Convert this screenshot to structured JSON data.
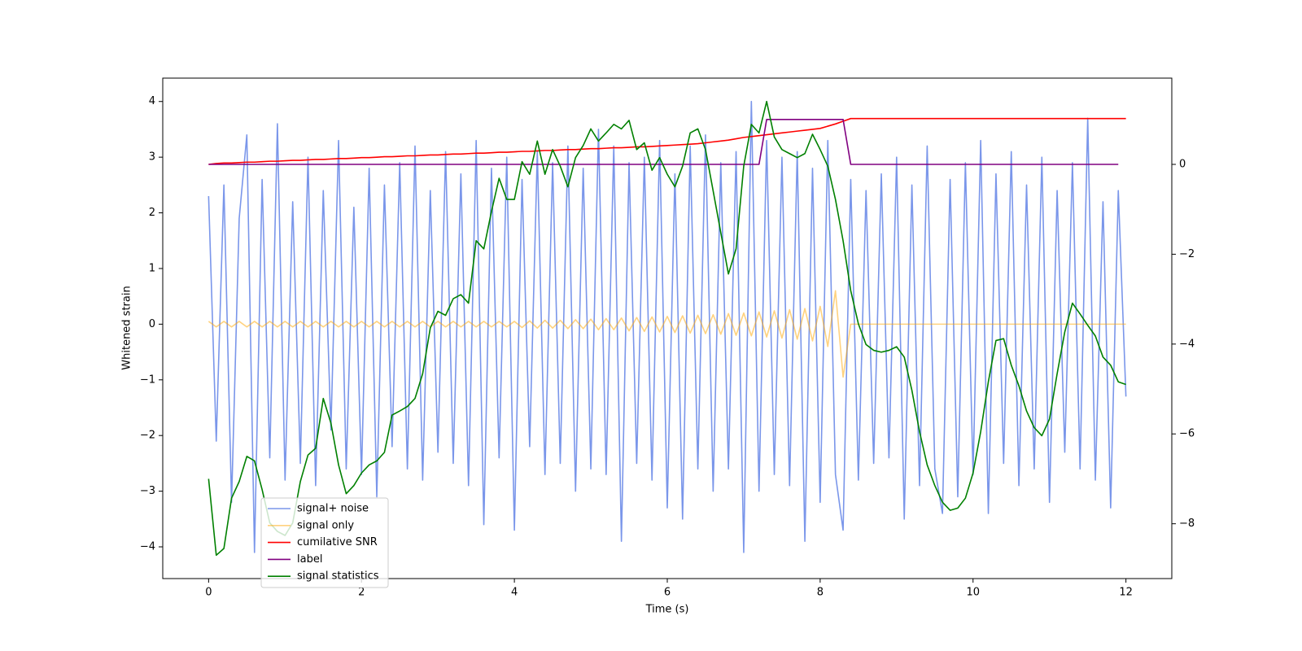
{
  "chart_data": {
    "type": "line",
    "xlabel": "Time (s)",
    "ylabel": "Whitened strain",
    "xlim": [
      -0.6,
      12.6
    ],
    "ylim": [
      -4.57,
      4.42
    ],
    "y2lim": [
      -9.22,
      1.92
    ],
    "xticks": [
      0,
      2,
      4,
      6,
      8,
      10,
      12
    ],
    "yticks": [
      {
        "value": -4,
        "label": "−4"
      },
      {
        "value": -3,
        "label": "−3"
      },
      {
        "value": -2,
        "label": "−2"
      },
      {
        "value": -1,
        "label": "−1"
      },
      0,
      1,
      2,
      3,
      4
    ],
    "y2ticks": [
      {
        "value": -8,
        "label": "−8"
      },
      {
        "value": -6,
        "label": "−6"
      },
      {
        "value": -4,
        "label": "−4"
      },
      {
        "value": -2,
        "label": "−2"
      },
      0
    ],
    "x": [
      0,
      0.1,
      0.2,
      0.3,
      0.4,
      0.5,
      0.6,
      0.7,
      0.8,
      0.9,
      1,
      1.1,
      1.2,
      1.3,
      1.4,
      1.5,
      1.6,
      1.7,
      1.8,
      1.9,
      2,
      2.1,
      2.2,
      2.3,
      2.4,
      2.5,
      2.6,
      2.7,
      2.8,
      2.9,
      3,
      3.1,
      3.2,
      3.3,
      3.4,
      3.5,
      3.6,
      3.7,
      3.8,
      3.9,
      4,
      4.1,
      4.2,
      4.3,
      4.4,
      4.5,
      4.6,
      4.7,
      4.8,
      4.9,
      5,
      5.1,
      5.2,
      5.3,
      5.4,
      5.5,
      5.6,
      5.7,
      5.8,
      5.9,
      6,
      6.1,
      6.2,
      6.3,
      6.4,
      6.5,
      6.6,
      6.7,
      6.8,
      6.9,
      7,
      7.1,
      7.2,
      7.3,
      7.4,
      7.5,
      7.6,
      7.7,
      7.8,
      7.9,
      8,
      8.1,
      8.2,
      8.3,
      8.4,
      8.5,
      8.6,
      8.7,
      8.8,
      8.9,
      9,
      9.1,
      9.2,
      9.3,
      9.4,
      9.5,
      9.6,
      9.7,
      9.8,
      9.9,
      10,
      10.1,
      10.2,
      10.3,
      10.4,
      10.5,
      10.6,
      10.7,
      10.8,
      10.9,
      11,
      11.1,
      11.2,
      11.3,
      11.4,
      11.5,
      11.6,
      11.7,
      11.8,
      11.9,
      12
    ],
    "series": [
      {
        "name": "signal+ noise",
        "color": "#4169e1",
        "alpha": 0.7,
        "values": [
          2.3,
          -2.1,
          2.5,
          -3.2,
          1.9,
          3.4,
          -4.1,
          2.6,
          -2.4,
          3.6,
          -2.8,
          2.2,
          -2.5,
          3.0,
          -2.9,
          2.4,
          -1.9,
          3.3,
          -2.6,
          2.1,
          -2.7,
          2.8,
          -3.1,
          2.5,
          -2.2,
          2.9,
          -2.6,
          3.2,
          -2.8,
          2.4,
          -2.3,
          3.1,
          -2.5,
          2.7,
          -2.9,
          3.3,
          -3.6,
          2.8,
          -2.4,
          3.0,
          -3.7,
          2.6,
          -2.2,
          3.1,
          -2.7,
          2.9,
          -2.5,
          3.2,
          -3.0,
          2.8,
          -2.6,
          3.5,
          -2.7,
          3.2,
          -3.9,
          2.9,
          -2.5,
          3.0,
          -2.8,
          3.3,
          -3.3,
          2.7,
          -3.5,
          3.2,
          -2.6,
          3.4,
          -3.0,
          2.9,
          -2.6,
          3.1,
          -4.1,
          4.0,
          -3.0,
          3.3,
          -2.7,
          3.0,
          -2.9,
          3.1,
          -3.9,
          2.8,
          -3.2,
          3.3,
          -2.7,
          -3.7,
          2.6,
          -2.8,
          2.4,
          -2.5,
          2.7,
          -2.4,
          3.0,
          -3.5,
          2.5,
          -2.9,
          3.2,
          -2.6,
          -3.4,
          2.6,
          -3.1,
          2.9,
          -2.7,
          3.3,
          -3.4,
          2.7,
          -2.5,
          3.1,
          -2.9,
          2.5,
          -2.6,
          3.0,
          -3.2,
          2.4,
          -2.3,
          2.9,
          -2.6,
          3.7,
          -2.8,
          2.2,
          -3.3,
          2.4,
          -1.3
        ]
      },
      {
        "name": "signal only",
        "color": "#ffa500",
        "alpha": 0.5,
        "values": [
          0.05,
          -0.05,
          0.05,
          -0.05,
          0.05,
          -0.05,
          0.05,
          -0.05,
          0.05,
          -0.05,
          0.05,
          -0.05,
          0.05,
          -0.05,
          0.05,
          -0.05,
          0.05,
          -0.05,
          0.05,
          -0.05,
          0.05,
          -0.05,
          0.05,
          -0.05,
          0.05,
          -0.05,
          0.05,
          -0.05,
          0.05,
          -0.05,
          0.05,
          -0.05,
          0.05,
          -0.05,
          0.05,
          -0.05,
          0.05,
          -0.05,
          0.05,
          -0.05,
          0.05,
          -0.06,
          0.06,
          -0.07,
          0.07,
          -0.07,
          0.07,
          -0.08,
          0.08,
          -0.08,
          0.09,
          -0.1,
          0.1,
          -0.1,
          0.11,
          -0.12,
          0.12,
          -0.13,
          0.13,
          -0.14,
          0.14,
          -0.15,
          0.15,
          -0.16,
          0.16,
          -0.17,
          0.17,
          -0.18,
          0.19,
          -0.2,
          0.2,
          -0.21,
          0.22,
          -0.23,
          0.24,
          -0.25,
          0.26,
          -0.27,
          0.28,
          -0.3,
          0.32,
          -0.4,
          0.6,
          -0.95,
          0,
          0,
          0,
          0,
          0,
          0,
          0,
          0,
          0,
          0,
          0,
          0,
          0,
          0,
          0,
          0,
          0,
          0,
          0,
          0,
          0,
          0,
          0,
          0,
          0,
          0,
          0,
          0,
          0,
          0,
          0,
          0,
          0,
          0,
          0,
          0,
          0
        ]
      },
      {
        "name": "cumilative SNR",
        "color": "#ff0000",
        "alpha": 1,
        "axis": "y2",
        "values": [
          0,
          0.02,
          0.03,
          0.03,
          0.04,
          0.05,
          0.05,
          0.06,
          0.07,
          0.07,
          0.08,
          0.09,
          0.09,
          0.1,
          0.11,
          0.11,
          0.12,
          0.13,
          0.13,
          0.14,
          0.15,
          0.15,
          0.16,
          0.17,
          0.17,
          0.18,
          0.19,
          0.19,
          0.2,
          0.21,
          0.21,
          0.22,
          0.23,
          0.23,
          0.24,
          0.25,
          0.25,
          0.26,
          0.27,
          0.27,
          0.28,
          0.29,
          0.29,
          0.3,
          0.31,
          0.31,
          0.32,
          0.33,
          0.33,
          0.34,
          0.35,
          0.35,
          0.36,
          0.37,
          0.37,
          0.38,
          0.39,
          0.39,
          0.4,
          0.41,
          0.42,
          0.43,
          0.44,
          0.45,
          0.46,
          0.48,
          0.5,
          0.52,
          0.54,
          0.57,
          0.6,
          0.62,
          0.64,
          0.66,
          0.68,
          0.7,
          0.72,
          0.74,
          0.76,
          0.78,
          0.8,
          0.85,
          0.9,
          0.96,
          1.02,
          1.02,
          1.02,
          1.02,
          1.02,
          1.02,
          1.02,
          1.02,
          1.02,
          1.02,
          1.02,
          1.02,
          1.02,
          1.02,
          1.02,
          1.02,
          1.02,
          1.02,
          1.02,
          1.02,
          1.02,
          1.02,
          1.02,
          1.02,
          1.02,
          1.02,
          1.02,
          1.02,
          1.02,
          1.02,
          1.02,
          1.02,
          1.02,
          1.02,
          1.02,
          1.02,
          1.02
        ]
      },
      {
        "name": "label",
        "color": "#800080",
        "alpha": 1,
        "axis": "y2",
        "values": [
          0,
          0,
          0,
          0,
          0,
          0,
          0,
          0,
          0,
          0,
          0,
          0,
          0,
          0,
          0,
          0,
          0,
          0,
          0,
          0,
          0,
          0,
          0,
          0,
          0,
          0,
          0,
          0,
          0,
          0,
          0,
          0,
          0,
          0,
          0,
          0,
          0,
          0,
          0,
          0,
          0,
          0,
          0,
          0,
          0,
          0,
          0,
          0,
          0,
          0,
          0,
          0,
          0,
          0,
          0,
          0,
          0,
          0,
          0,
          0,
          0,
          0,
          0,
          0,
          0,
          0,
          0,
          0,
          0,
          0,
          0,
          0,
          0,
          1,
          1,
          1,
          1,
          1,
          1,
          1,
          1,
          1,
          1,
          1,
          0,
          0,
          0,
          0,
          0,
          0,
          0,
          0,
          0,
          0,
          0,
          0,
          0,
          0,
          0,
          0,
          0,
          0,
          0,
          0,
          0,
          0,
          0,
          0,
          0,
          0,
          0,
          0,
          0,
          0,
          0,
          0,
          0,
          0,
          0,
          0,
          null
        ]
      },
      {
        "name": "signal statistics",
        "color": "#008000",
        "alpha": 1,
        "axis": "y2",
        "values": [
          -7.0,
          -8.7,
          -8.55,
          -7.43,
          -7.06,
          -6.5,
          -6.6,
          -7.24,
          -7.98,
          -8.17,
          -8.26,
          -7.98,
          -7.06,
          -6.47,
          -6.32,
          -5.21,
          -5.76,
          -6.69,
          -7.33,
          -7.15,
          -6.87,
          -6.69,
          -6.6,
          -6.41,
          -5.58,
          -5.49,
          -5.39,
          -5.21,
          -4.66,
          -3.64,
          -3.27,
          -3.36,
          -2.99,
          -2.9,
          -3.09,
          -1.7,
          -1.88,
          -1.05,
          -0.31,
          -0.78,
          -0.78,
          0.06,
          -0.22,
          0.52,
          -0.22,
          0.33,
          -0.04,
          -0.5,
          0.15,
          0.42,
          0.79,
          0.52,
          0.7,
          0.89,
          0.79,
          0.98,
          0.33,
          0.48,
          -0.13,
          0.15,
          -0.22,
          -0.5,
          -0.04,
          0.7,
          0.79,
          0.33,
          -0.59,
          -1.52,
          -2.44,
          -1.88,
          -0.04,
          0.89,
          0.7,
          1.4,
          0.61,
          0.33,
          0.24,
          0.15,
          0.24,
          0.67,
          0.33,
          -0.04,
          -0.78,
          -1.7,
          -2.81,
          -3.55,
          -4.01,
          -4.14,
          -4.18,
          -4.14,
          -4.06,
          -4.29,
          -5.03,
          -5.95,
          -6.69,
          -7.15,
          -7.52,
          -7.7,
          -7.65,
          -7.43,
          -6.87,
          -5.95,
          -4.84,
          -3.92,
          -3.88,
          -4.47,
          -4.93,
          -5.49,
          -5.86,
          -6.04,
          -5.67,
          -4.66,
          -3.73,
          -3.09,
          -3.33,
          -3.58,
          -3.82,
          -4.29,
          -4.47,
          -4.84,
          -4.9
        ]
      }
    ]
  }
}
